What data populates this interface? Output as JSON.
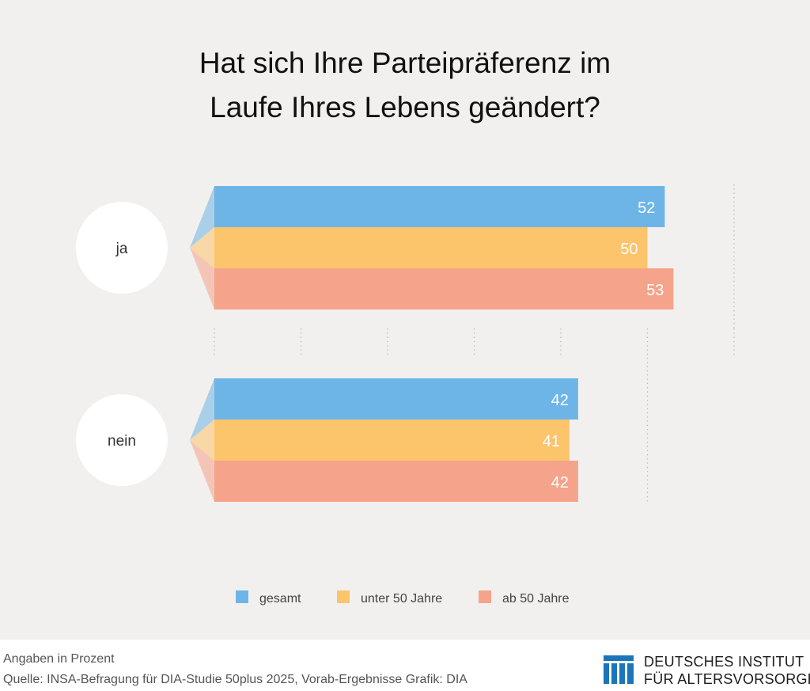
{
  "chart_data": {
    "type": "bar",
    "orientation": "horizontal",
    "title": "Hat sich Ihre Parteipräferenz im Laufe Ihres Lebens geändert?",
    "categories": [
      "ja",
      "nein"
    ],
    "series": [
      {
        "name": "gesamt",
        "color": "#6db5e6",
        "values": [
          52,
          42
        ]
      },
      {
        "name": "unter 50 Jahre",
        "color": "#fcc46b",
        "values": [
          50,
          41
        ]
      },
      {
        "name": "ab 50 Jahre",
        "color": "#f5a38a",
        "values": [
          53,
          42
        ]
      }
    ],
    "xlim": [
      0,
      60
    ],
    "grid": true,
    "legend_position": "bottom"
  },
  "footer": {
    "note": "Angaben in Prozent",
    "source": "Quelle: INSA-Befragung für DIA-Studie 50plus 2025, Vorab-Ergebnisse  Grafik: DIA"
  },
  "logo": {
    "line1": "DEUTSCHES INSTITUT",
    "line2": "FÜR ALTERSVORSORGE",
    "color": "#1b75bb"
  }
}
